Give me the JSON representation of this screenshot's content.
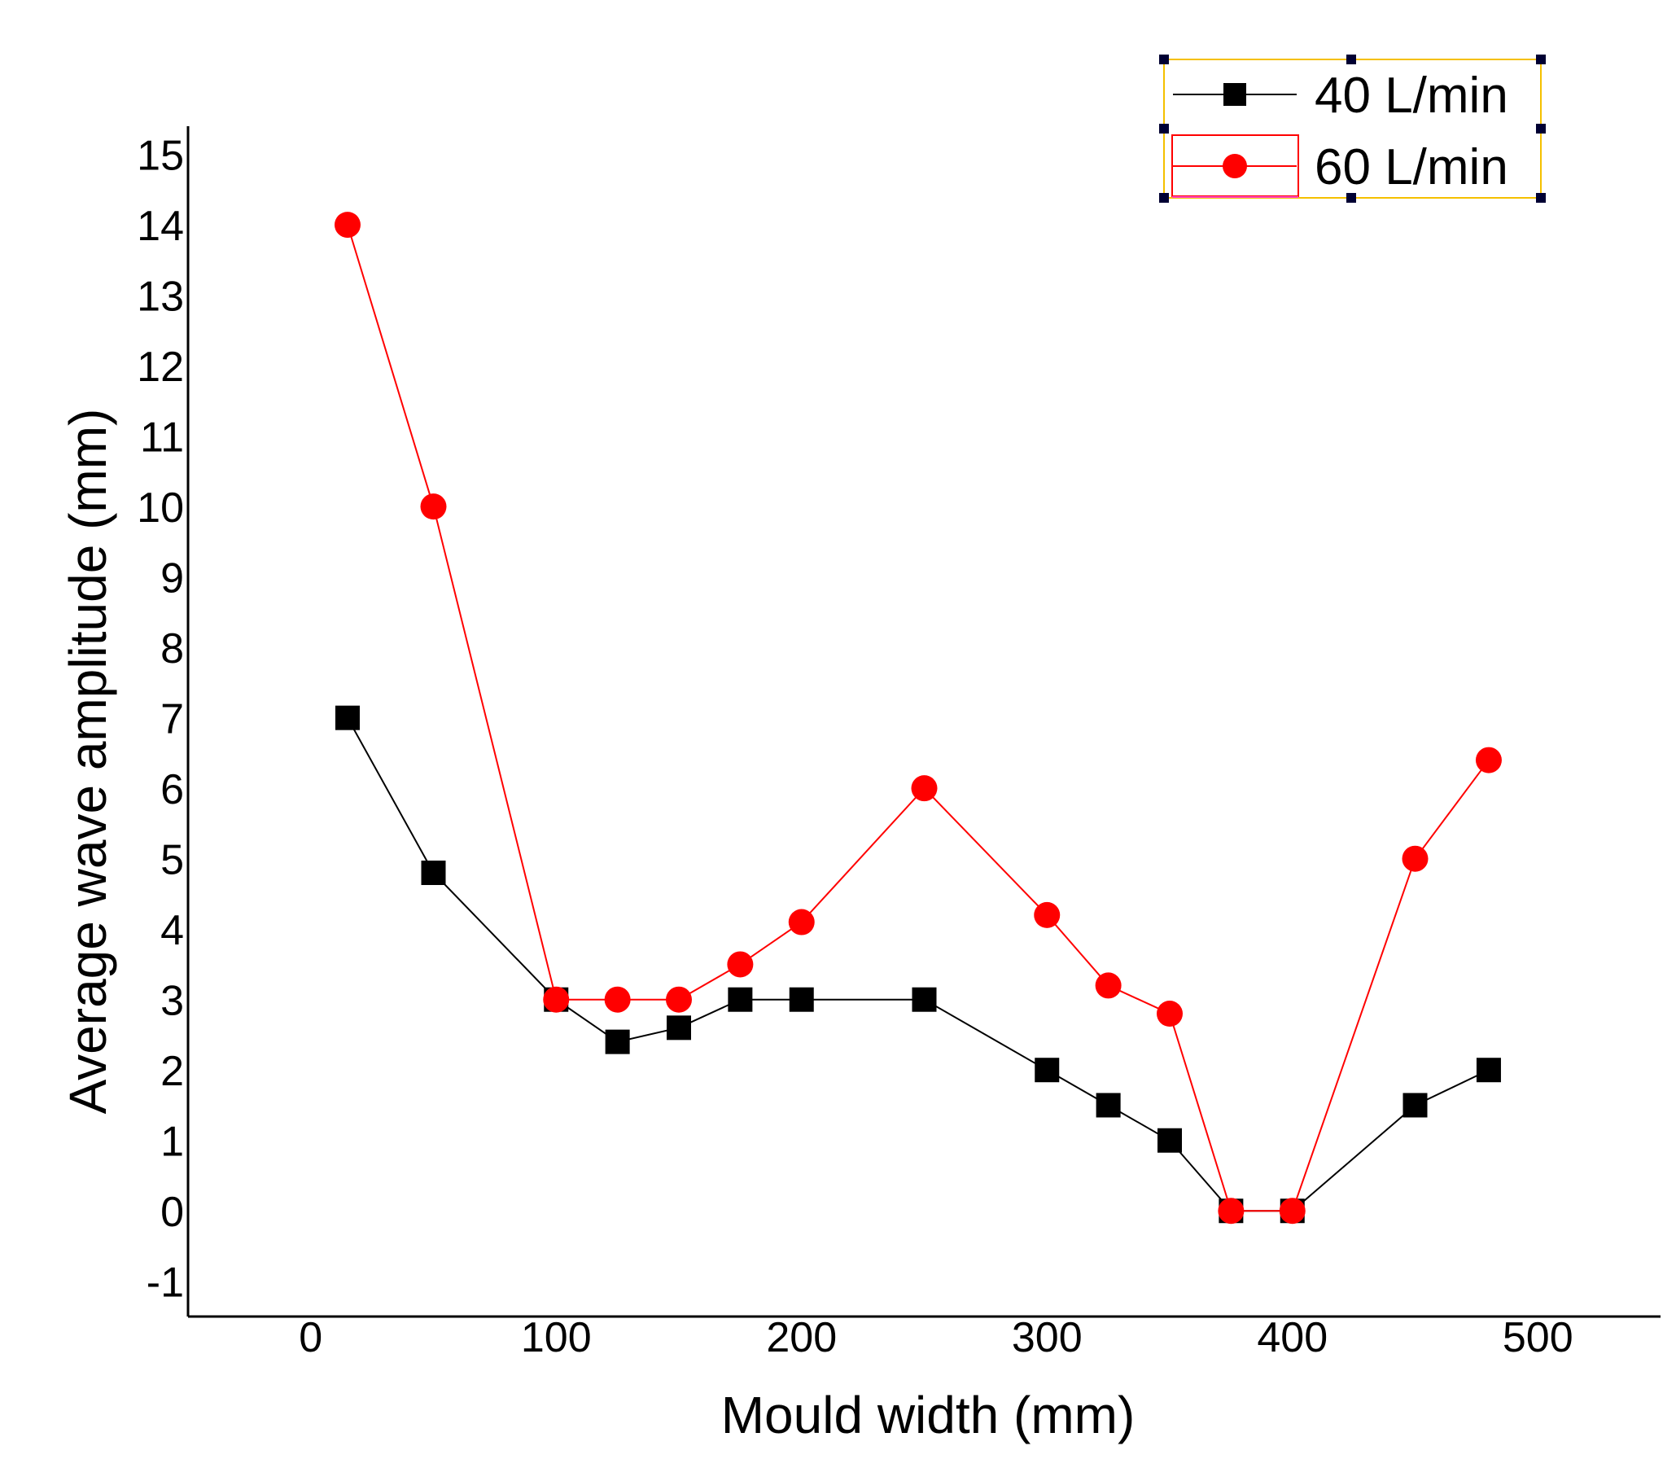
{
  "chart_data": {
    "type": "line",
    "title": "",
    "xlabel": "Mould width (mm)",
    "ylabel": "Average wave amplitude (mm)",
    "xlim": [
      -50,
      550
    ],
    "ylim": [
      -1.5,
      15.4
    ],
    "xticks": [
      0,
      100,
      200,
      300,
      400,
      500
    ],
    "yticks": [
      -1,
      0,
      1,
      2,
      3,
      4,
      5,
      6,
      7,
      8,
      9,
      10,
      11,
      12,
      13,
      14,
      15
    ],
    "legend_position": "top-right",
    "series": [
      {
        "name": "40 L/min",
        "color": "#000000",
        "marker": "square",
        "x": [
          15,
          50,
          100,
          125,
          150,
          175,
          200,
          250,
          300,
          325,
          350,
          375,
          400,
          450,
          480
        ],
        "y": [
          7.0,
          4.8,
          3.0,
          2.4,
          2.6,
          3.0,
          3.0,
          3.0,
          2.0,
          1.5,
          1.0,
          0.0,
          0.0,
          1.5,
          2.0
        ]
      },
      {
        "name": "60 L/min",
        "color": "#ff0000",
        "marker": "circle",
        "x": [
          15,
          50,
          100,
          125,
          150,
          175,
          200,
          250,
          300,
          325,
          350,
          375,
          400,
          450,
          480
        ],
        "y": [
          14.0,
          10.0,
          3.0,
          3.0,
          3.0,
          3.5,
          4.1,
          6.0,
          4.2,
          3.2,
          2.8,
          0.0,
          0.0,
          5.0,
          6.4
        ]
      }
    ]
  }
}
